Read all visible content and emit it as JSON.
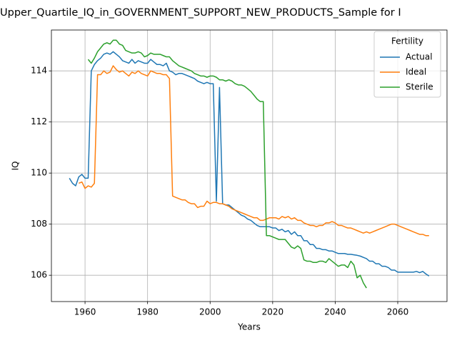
{
  "chart_data": {
    "type": "line",
    "title": "Upper_Quartile_IQ_in_GOVERNMENT_SUPPORT_NEW_PRODUCTS_Sample for I",
    "x_label": "Years",
    "y_label": "IQ",
    "legend_title": "Fertility",
    "legend": "upper right",
    "grid": true,
    "xlim": [
      1949.25,
      2075.75
    ],
    "xticks": [
      1960,
      1980,
      2000,
      2020,
      2040,
      2060
    ],
    "ylim": [
      104.97,
      115.6
    ],
    "yticks": [
      106,
      108,
      110,
      112,
      114
    ],
    "x": [
      1955,
      1956,
      1957,
      1958,
      1959,
      1960,
      1961,
      1962,
      1963,
      1964,
      1965,
      1966,
      1967,
      1968,
      1969,
      1970,
      1971,
      1972,
      1973,
      1974,
      1975,
      1976,
      1977,
      1978,
      1979,
      1980,
      1981,
      1982,
      1983,
      1984,
      1985,
      1986,
      1987,
      1988,
      1989,
      1990,
      1991,
      1992,
      1993,
      1994,
      1995,
      1996,
      1997,
      1998,
      1999,
      2000,
      2001,
      2002,
      2003,
      2004,
      2005,
      2006,
      2007,
      2008,
      2009,
      2010,
      2011,
      2012,
      2013,
      2014,
      2015,
      2016,
      2017,
      2018,
      2019,
      2020,
      2021,
      2022,
      2023,
      2024,
      2025,
      2026,
      2027,
      2028,
      2029,
      2030,
      2031,
      2032,
      2033,
      2034,
      2035,
      2036,
      2037,
      2038,
      2039,
      2040,
      2041,
      2042,
      2043,
      2044,
      2045,
      2046,
      2047,
      2048,
      2049,
      2050,
      2051,
      2052,
      2053,
      2054,
      2055,
      2056,
      2057,
      2058,
      2059,
      2060,
      2061,
      2062,
      2063,
      2064,
      2065,
      2066,
      2067,
      2068,
      2069,
      2070
    ],
    "series": [
      {
        "name": "Actual",
        "color": "#1f77b4",
        "values": [
          109.8,
          109.6,
          109.5,
          109.85,
          109.95,
          109.8,
          109.8,
          114.0,
          114.25,
          114.4,
          114.5,
          114.65,
          114.7,
          114.65,
          114.75,
          114.65,
          114.55,
          114.4,
          114.35,
          114.3,
          114.45,
          114.3,
          114.4,
          114.35,
          114.3,
          114.3,
          114.45,
          114.35,
          114.25,
          114.25,
          114.2,
          114.3,
          114.0,
          113.95,
          113.85,
          113.9,
          113.9,
          113.85,
          113.8,
          113.75,
          113.7,
          113.6,
          113.55,
          113.5,
          113.55,
          113.5,
          113.5,
          108.9,
          113.35,
          108.8,
          108.75,
          108.75,
          108.65,
          108.55,
          108.45,
          108.35,
          108.3,
          108.2,
          108.15,
          108.05,
          107.95,
          107.9,
          107.9,
          107.9,
          107.9,
          107.85,
          107.85,
          107.75,
          107.8,
          107.7,
          107.75,
          107.6,
          107.7,
          107.55,
          107.55,
          107.35,
          107.35,
          107.2,
          107.2,
          107.05,
          107.05,
          107.0,
          107.0,
          106.95,
          106.95,
          106.9,
          106.85,
          106.85,
          106.85,
          106.82,
          106.82,
          106.8,
          106.78,
          106.75,
          106.7,
          106.65,
          106.55,
          106.55,
          106.45,
          106.45,
          106.35,
          106.35,
          106.3,
          106.2,
          106.2,
          106.12,
          106.12,
          106.12,
          106.12,
          106.12,
          106.12,
          106.15,
          106.1,
          106.15,
          106.05,
          105.97
        ]
      },
      {
        "name": "Ideal",
        "color": "#ff7f0e",
        "values": [
          null,
          null,
          null,
          109.6,
          109.65,
          109.4,
          109.5,
          109.45,
          109.6,
          113.85,
          113.85,
          114.0,
          113.9,
          113.95,
          114.2,
          114.05,
          113.95,
          114.0,
          113.9,
          113.8,
          113.95,
          113.9,
          114.0,
          113.9,
          113.85,
          113.8,
          114.0,
          113.95,
          113.9,
          113.9,
          113.85,
          113.85,
          113.7,
          109.1,
          109.05,
          109.0,
          108.95,
          108.95,
          108.85,
          108.8,
          108.8,
          108.65,
          108.7,
          108.7,
          108.9,
          108.8,
          108.85,
          108.85,
          108.8,
          108.8,
          108.75,
          108.7,
          108.6,
          108.55,
          108.5,
          108.45,
          108.4,
          108.35,
          108.3,
          108.25,
          108.25,
          108.15,
          108.15,
          108.2,
          108.25,
          108.25,
          108.25,
          108.2,
          108.3,
          108.25,
          108.3,
          108.2,
          108.25,
          108.15,
          108.15,
          108.05,
          108.0,
          107.95,
          107.95,
          107.9,
          107.95,
          107.95,
          108.05,
          108.05,
          108.1,
          108.05,
          107.95,
          107.95,
          107.9,
          107.85,
          107.85,
          107.8,
          107.75,
          107.7,
          107.65,
          107.7,
          107.65,
          107.7,
          107.75,
          107.8,
          107.85,
          107.9,
          107.95,
          108.0,
          108.0,
          107.95,
          107.9,
          107.85,
          107.8,
          107.75,
          107.7,
          107.65,
          107.6,
          107.6,
          107.55,
          107.55
        ]
      },
      {
        "name": "Sterile",
        "color": "#2ca02c",
        "values": [
          null,
          null,
          null,
          null,
          null,
          null,
          114.45,
          114.3,
          114.5,
          114.75,
          114.9,
          115.05,
          115.1,
          115.05,
          115.2,
          115.2,
          115.05,
          115.0,
          114.8,
          114.75,
          114.7,
          114.7,
          114.75,
          114.7,
          114.55,
          114.6,
          114.7,
          114.65,
          114.65,
          114.65,
          114.6,
          114.55,
          114.55,
          114.4,
          114.3,
          114.2,
          114.15,
          114.1,
          114.05,
          114.0,
          113.9,
          113.85,
          113.8,
          113.8,
          113.75,
          113.8,
          113.8,
          113.75,
          113.65,
          113.65,
          113.6,
          113.65,
          113.6,
          113.5,
          113.45,
          113.45,
          113.4,
          113.3,
          113.2,
          113.05,
          112.9,
          112.8,
          112.8,
          107.55,
          107.55,
          107.5,
          107.45,
          107.4,
          107.4,
          107.4,
          107.25,
          107.1,
          107.05,
          107.15,
          107.05,
          106.6,
          106.55,
          106.55,
          106.5,
          106.5,
          106.55,
          106.55,
          106.5,
          106.65,
          106.55,
          106.45,
          106.35,
          106.4,
          106.4,
          106.3,
          106.55,
          106.4,
          105.9,
          106.0,
          105.7,
          105.5,
          null,
          null,
          null,
          null,
          null,
          null,
          null,
          null,
          null,
          null,
          null,
          null,
          null,
          null,
          null,
          null,
          null,
          null,
          null,
          null
        ]
      }
    ]
  }
}
